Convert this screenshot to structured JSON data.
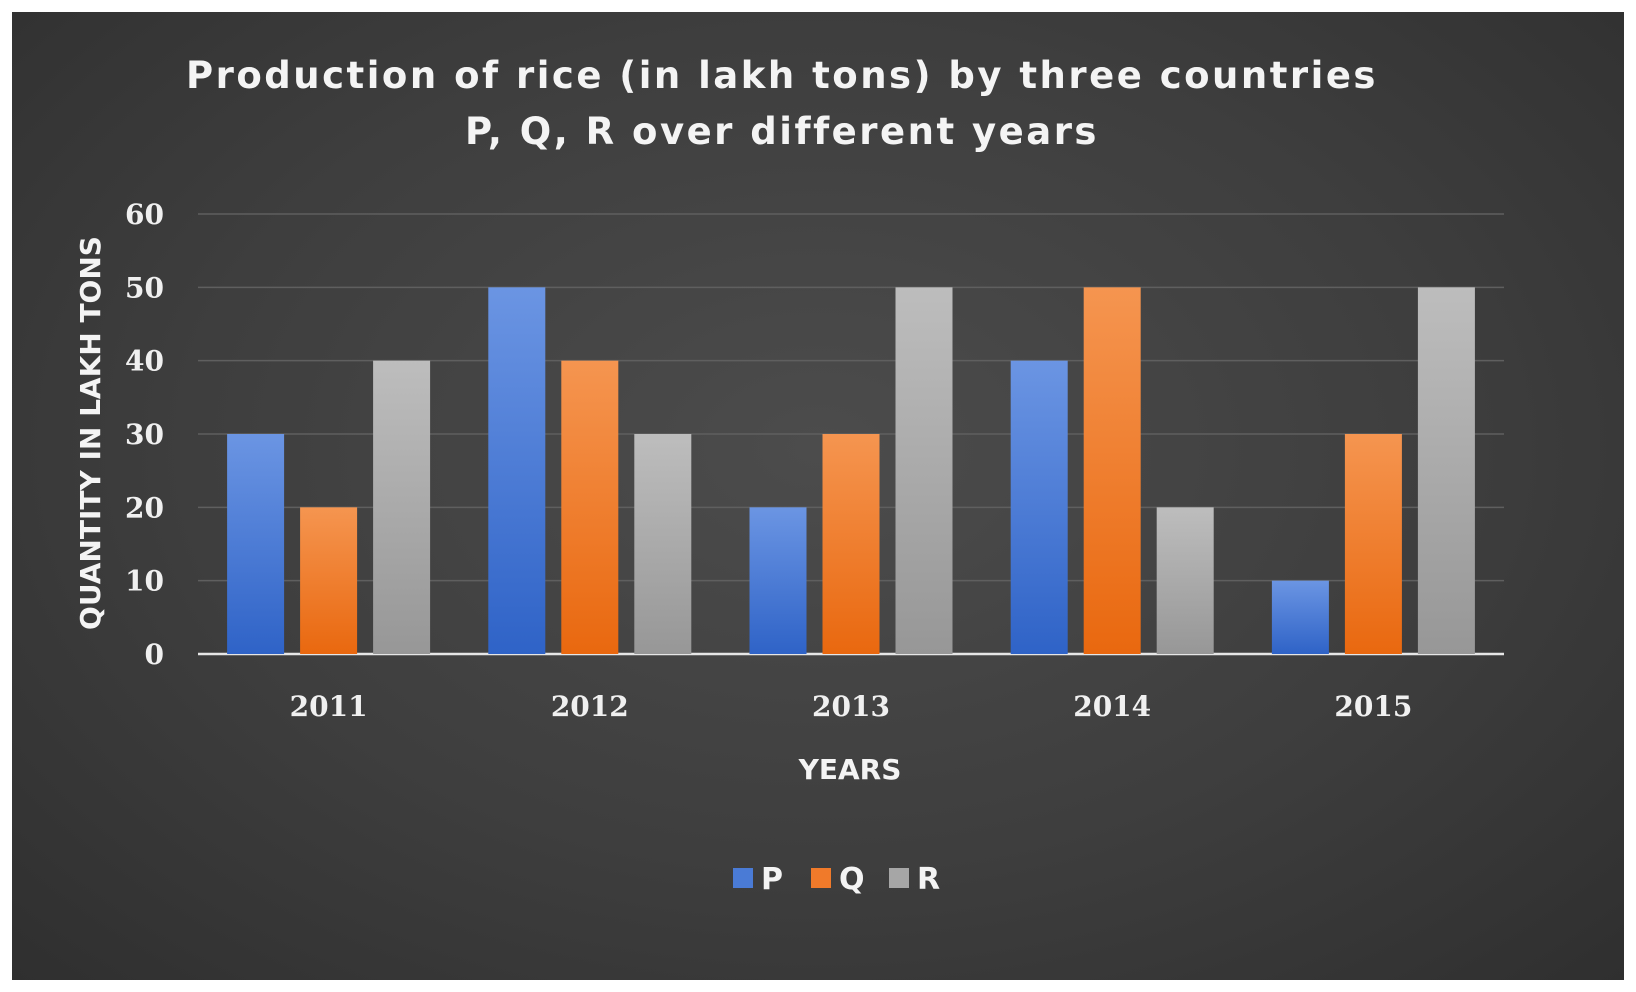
{
  "chart_data": {
    "type": "bar",
    "title": "Production of rice (in lakh tons) by three countries",
    "subtitle": "P, Q, R over different years",
    "xlabel": "YEARS",
    "ylabel": "QUANTITY IN LAKH TONS",
    "categories": [
      "2011",
      "2012",
      "2013",
      "2014",
      "2015"
    ],
    "series": [
      {
        "name": "P",
        "values": [
          30,
          50,
          20,
          40,
          10
        ],
        "color": "#4a7bd6"
      },
      {
        "name": "Q",
        "values": [
          20,
          40,
          30,
          50,
          30
        ],
        "color": "#f07a2a"
      },
      {
        "name": "R",
        "values": [
          40,
          30,
          50,
          20,
          50
        ],
        "color": "#a6a6a6"
      }
    ],
    "ylim": [
      0,
      60
    ],
    "yticks": [
      "0",
      "10",
      "20",
      "30",
      "40",
      "50",
      "60"
    ],
    "grid": true,
    "legend_position": "bottom",
    "colors": {
      "background": "#3e3e3e",
      "gridline": "#5f5f5f",
      "axis": "#e6e6e6",
      "text": "#f2f2f2"
    }
  }
}
